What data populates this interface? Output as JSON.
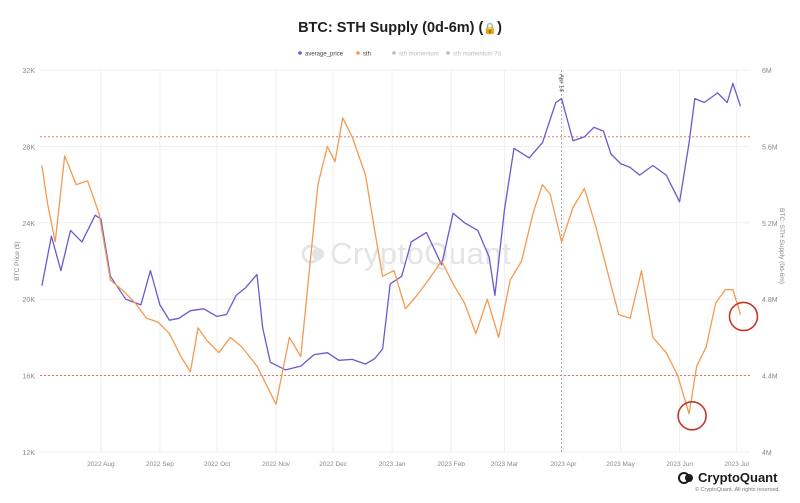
{
  "title": "BTC: STH Supply (0d-6m)",
  "lock_icon": "lock-icon",
  "watermark": "CryptoQuant",
  "logo_text": "CryptoQuant",
  "copyright": "© CryptoQuant. All rights reserved.",
  "colors": {
    "price": "#6a5acd",
    "sth": "#f39a50",
    "ref_line": "#e35d5d",
    "circle": "#c0392b",
    "grid": "#efefef"
  },
  "chart_data": {
    "type": "line",
    "title": "BTC: STH Supply (0d-6m)",
    "legend_position": "top-center",
    "legend": [
      "average_price",
      "sth",
      "sth momentum",
      "sth momentum 7d"
    ],
    "y_left": {
      "label": "BTC Price ($)",
      "ticks": [
        "12K",
        "16K",
        "20K",
        "24K",
        "28K",
        "32K"
      ],
      "range": [
        12000,
        32000
      ]
    },
    "y_right": {
      "label": "BTC: STH Supply (0d-6m)",
      "ticks": [
        "4M",
        "4.4M",
        "4.8M",
        "5.2M",
        "5.6M",
        "6M"
      ],
      "range": [
        4000000,
        6000000
      ]
    },
    "x_ticks": [
      "2022 Aug",
      "2022 Sep",
      "2022 Oct",
      "2022 Nov",
      "2022 Dec",
      "2023 Jan",
      "2023 Feb",
      "2023 Mar",
      "2023 Apr",
      "2023 May",
      "2023 Jun",
      "2023 Jul"
    ],
    "event_line_label": "Apr 14",
    "ref_lines_left_axis": [
      28500,
      16000
    ],
    "series": [
      {
        "name": "average_price",
        "axis": "left",
        "points": [
          [
            "2022-07-15",
            20700
          ],
          [
            "2022-07-20",
            23300
          ],
          [
            "2022-07-25",
            21500
          ],
          [
            "2022-07-30",
            23600
          ],
          [
            "2022-08-05",
            23000
          ],
          [
            "2022-08-12",
            24400
          ],
          [
            "2022-08-15",
            24200
          ],
          [
            "2022-08-20",
            21200
          ],
          [
            "2022-08-28",
            20000
          ],
          [
            "2022-09-05",
            19700
          ],
          [
            "2022-09-10",
            21500
          ],
          [
            "2022-09-15",
            19700
          ],
          [
            "2022-09-20",
            18900
          ],
          [
            "2022-09-25",
            19000
          ],
          [
            "2022-10-01",
            19400
          ],
          [
            "2022-10-08",
            19500
          ],
          [
            "2022-10-15",
            19100
          ],
          [
            "2022-10-20",
            19200
          ],
          [
            "2022-10-25",
            20200
          ],
          [
            "2022-10-30",
            20600
          ],
          [
            "2022-11-05",
            21300
          ],
          [
            "2022-11-08",
            18500
          ],
          [
            "2022-11-12",
            16700
          ],
          [
            "2022-11-20",
            16300
          ],
          [
            "2022-11-28",
            16500
          ],
          [
            "2022-12-05",
            17100
          ],
          [
            "2022-12-12",
            17200
          ],
          [
            "2022-12-18",
            16800
          ],
          [
            "2022-12-25",
            16850
          ],
          [
            "2023-01-01",
            16600
          ],
          [
            "2023-01-06",
            16900
          ],
          [
            "2023-01-10",
            17400
          ],
          [
            "2023-01-14",
            20800
          ],
          [
            "2023-01-20",
            21200
          ],
          [
            "2023-01-25",
            23000
          ],
          [
            "2023-02-02",
            23500
          ],
          [
            "2023-02-10",
            21800
          ],
          [
            "2023-02-16",
            24500
          ],
          [
            "2023-02-22",
            24000
          ],
          [
            "2023-03-01",
            23600
          ],
          [
            "2023-03-07",
            22200
          ],
          [
            "2023-03-10",
            20200
          ],
          [
            "2023-03-15",
            24700
          ],
          [
            "2023-03-20",
            27900
          ],
          [
            "2023-03-28",
            27400
          ],
          [
            "2023-04-04",
            28200
          ],
          [
            "2023-04-11",
            30300
          ],
          [
            "2023-04-14",
            30500
          ],
          [
            "2023-04-20",
            28300
          ],
          [
            "2023-04-26",
            28500
          ],
          [
            "2023-05-01",
            29000
          ],
          [
            "2023-05-06",
            28800
          ],
          [
            "2023-05-10",
            27600
          ],
          [
            "2023-05-15",
            27100
          ],
          [
            "2023-05-20",
            26900
          ],
          [
            "2023-05-25",
            26500
          ],
          [
            "2023-06-01",
            27000
          ],
          [
            "2023-06-08",
            26500
          ],
          [
            "2023-06-15",
            25100
          ],
          [
            "2023-06-20",
            28200
          ],
          [
            "2023-06-23",
            30500
          ],
          [
            "2023-06-28",
            30300
          ],
          [
            "2023-07-05",
            30800
          ],
          [
            "2023-07-10",
            30300
          ],
          [
            "2023-07-13",
            31300
          ],
          [
            "2023-07-17",
            30100
          ]
        ]
      },
      {
        "name": "sth",
        "axis": "right",
        "points": [
          [
            "2022-07-15",
            5500000
          ],
          [
            "2022-07-18",
            5300000
          ],
          [
            "2022-07-22",
            5100000
          ],
          [
            "2022-07-27",
            5550000
          ],
          [
            "2022-08-02",
            5400000
          ],
          [
            "2022-08-08",
            5420000
          ],
          [
            "2022-08-14",
            5250000
          ],
          [
            "2022-08-20",
            4900000
          ],
          [
            "2022-08-26",
            4850000
          ],
          [
            "2022-09-02",
            4780000
          ],
          [
            "2022-09-08",
            4700000
          ],
          [
            "2022-09-14",
            4680000
          ],
          [
            "2022-09-20",
            4620000
          ],
          [
            "2022-09-26",
            4500000
          ],
          [
            "2022-10-01",
            4420000
          ],
          [
            "2022-10-05",
            4650000
          ],
          [
            "2022-10-10",
            4580000
          ],
          [
            "2022-10-16",
            4520000
          ],
          [
            "2022-10-22",
            4600000
          ],
          [
            "2022-10-28",
            4550000
          ],
          [
            "2022-11-05",
            4450000
          ],
          [
            "2022-11-10",
            4350000
          ],
          [
            "2022-11-15",
            4250000
          ],
          [
            "2022-11-22",
            4600000
          ],
          [
            "2022-11-28",
            4500000
          ],
          [
            "2022-12-02",
            4900000
          ],
          [
            "2022-12-07",
            5400000
          ],
          [
            "2022-12-12",
            5600000
          ],
          [
            "2022-12-16",
            5520000
          ],
          [
            "2022-12-20",
            5750000
          ],
          [
            "2022-12-25",
            5650000
          ],
          [
            "2023-01-01",
            5450000
          ],
          [
            "2023-01-06",
            5150000
          ],
          [
            "2023-01-10",
            4920000
          ],
          [
            "2023-01-16",
            4950000
          ],
          [
            "2023-01-22",
            4750000
          ],
          [
            "2023-01-28",
            4820000
          ],
          [
            "2023-02-03",
            4900000
          ],
          [
            "2023-02-10",
            5000000
          ],
          [
            "2023-02-16",
            4880000
          ],
          [
            "2023-02-22",
            4780000
          ],
          [
            "2023-02-28",
            4620000
          ],
          [
            "2023-03-06",
            4800000
          ],
          [
            "2023-03-12",
            4600000
          ],
          [
            "2023-03-18",
            4900000
          ],
          [
            "2023-03-24",
            5000000
          ],
          [
            "2023-03-30",
            5250000
          ],
          [
            "2023-04-04",
            5400000
          ],
          [
            "2023-04-08",
            5350000
          ],
          [
            "2023-04-14",
            5100000
          ],
          [
            "2023-04-20",
            5280000
          ],
          [
            "2023-04-26",
            5380000
          ],
          [
            "2023-05-02",
            5180000
          ],
          [
            "2023-05-08",
            4950000
          ],
          [
            "2023-05-14",
            4720000
          ],
          [
            "2023-05-20",
            4700000
          ],
          [
            "2023-05-26",
            4950000
          ],
          [
            "2023-06-01",
            4600000
          ],
          [
            "2023-06-08",
            4520000
          ],
          [
            "2023-06-14",
            4400000
          ],
          [
            "2023-06-20",
            4200000
          ],
          [
            "2023-06-24",
            4450000
          ],
          [
            "2023-06-29",
            4550000
          ],
          [
            "2023-07-04",
            4780000
          ],
          [
            "2023-07-09",
            4850000
          ],
          [
            "2023-07-13",
            4850000
          ],
          [
            "2023-07-17",
            4720000
          ]
        ]
      }
    ],
    "annotations": [
      {
        "type": "circle",
        "series": "sth",
        "date": "2023-06-20"
      },
      {
        "type": "circle",
        "series": "sth",
        "date": "2023-07-17"
      }
    ]
  }
}
